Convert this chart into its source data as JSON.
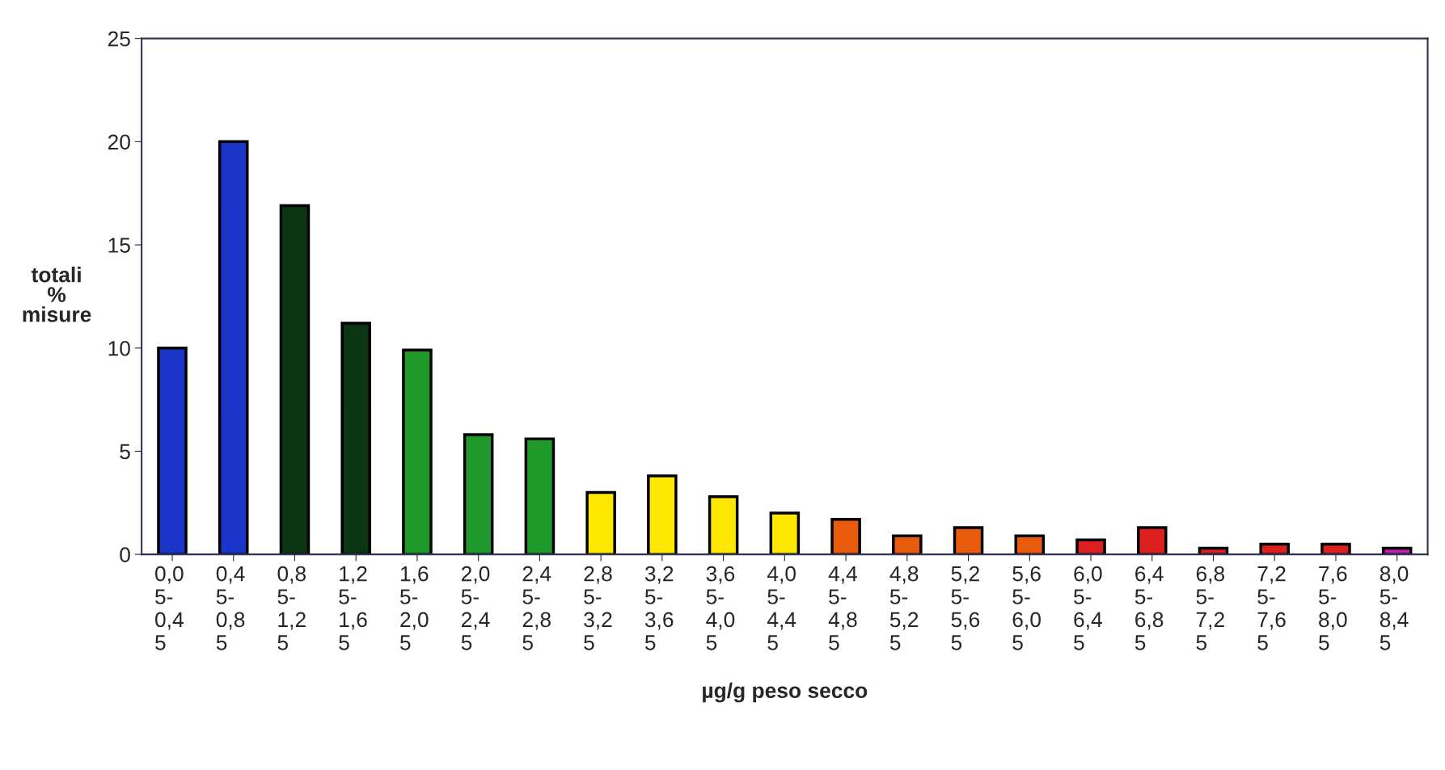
{
  "chart_data": {
    "type": "bar",
    "xlabel": "µg/g peso secco",
    "ylabel": "totali\n%\nmisure",
    "categories": [
      "0,0\n5-\n0,4\n5",
      "0,4\n5-\n0,8\n5",
      "0,8\n5-\n1,2\n5",
      "1,2\n5-\n1,6\n5",
      "1,6\n5-\n2,0\n5",
      "2,0\n5-\n2,4\n5",
      "2,4\n5-\n2,8\n5",
      "2,8\n5-\n3,2\n5",
      "3,2\n5-\n3,6\n5",
      "3,6\n5-\n4,0\n5",
      "4,0\n5-\n4,4\n5",
      "4,4\n5-\n4,8\n5",
      "4,8\n5-\n5,2\n5",
      "5,2\n5-\n5,6\n5",
      "5,6\n5-\n6,0\n5",
      "6,0\n5-\n6,4\n5",
      "6,4\n5-\n6,8\n5",
      "6,8\n5-\n7,2\n5",
      "7,2\n5-\n7,6\n5",
      "7,6\n5-\n8,0\n5",
      "8,0\n5-\n8,4\n5"
    ],
    "values": [
      10.0,
      20.0,
      16.9,
      11.2,
      9.9,
      5.8,
      5.6,
      3.0,
      3.8,
      2.8,
      2.0,
      1.7,
      0.9,
      1.3,
      0.9,
      0.7,
      1.3,
      0.3,
      0.5,
      0.5,
      0.3
    ],
    "colors": [
      "#1a35c8",
      "#1a35c8",
      "#0c3512",
      "#0c3512",
      "#1f9a2a",
      "#1f9a2a",
      "#1f9a2a",
      "#ffe800",
      "#ffe800",
      "#ffe800",
      "#ffe800",
      "#e85a0c",
      "#e85a0c",
      "#e85a0c",
      "#e85a0c",
      "#dc2020",
      "#dc2020",
      "#dc2020",
      "#dc2020",
      "#dc2020",
      "#c020b0"
    ],
    "ylim": [
      0,
      25
    ],
    "yticks": [
      0,
      5,
      10,
      15,
      20,
      25
    ],
    "grid": false,
    "legend": false
  }
}
